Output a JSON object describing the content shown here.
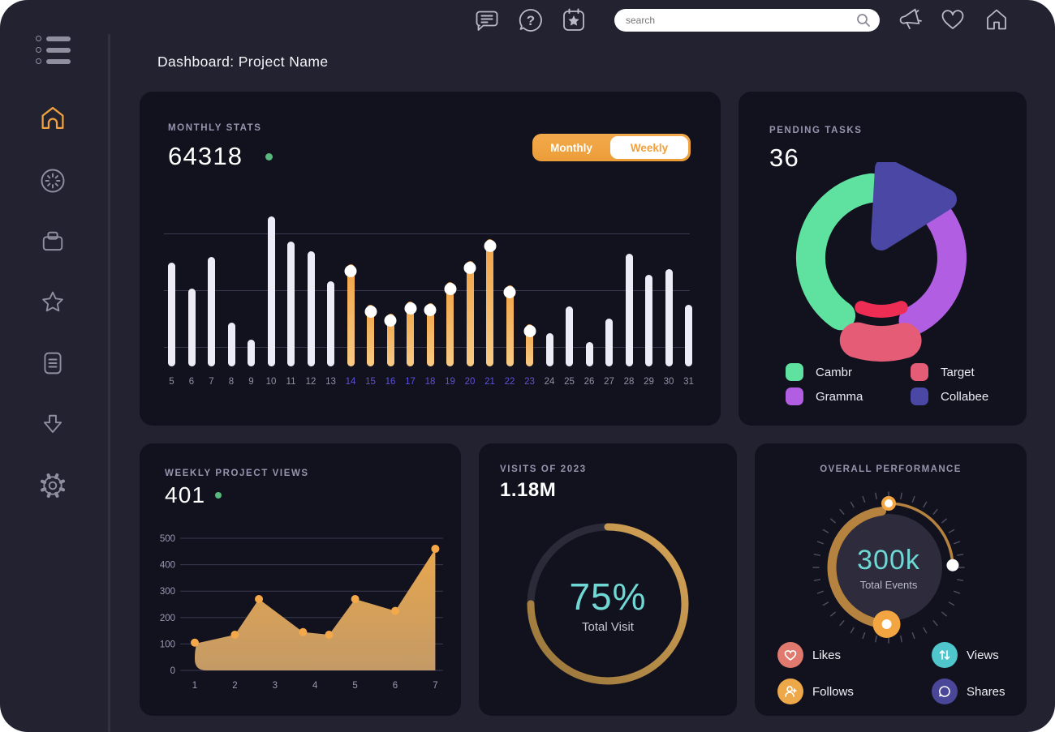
{
  "page": {
    "title": "Dashboard: Project Name"
  },
  "topbar": {
    "search_placeholder": "search",
    "icons": [
      "chat-icon",
      "help-icon",
      "calendar-icon",
      "search-icon",
      "megaphone-icon",
      "heart-icon",
      "home-icon"
    ]
  },
  "sidebar": {
    "icons": [
      "menu-icon",
      "home-icon",
      "timer-icon",
      "box-icon",
      "star-icon",
      "document-icon",
      "download-icon",
      "gear-icon"
    ],
    "active": "home",
    "active_color": "#f0a23f"
  },
  "cards": {
    "monthly": {
      "label": "MONTHLY STATS",
      "value": "64318",
      "toggle": {
        "left": "Monthly",
        "right": "Weekly",
        "selected": "Monthly"
      }
    },
    "pending": {
      "label": "PENDING TASKS",
      "value": "36",
      "legend": [
        {
          "name": "Cambr",
          "color": "#5fe2a0"
        },
        {
          "name": "Target",
          "color": "#e55c77"
        },
        {
          "name": "Gramma",
          "color": "#b25ee2"
        },
        {
          "name": "Collabee",
          "color": "#4b48a5"
        }
      ]
    },
    "weekly": {
      "label": "WEEKLY PROJECT VIEWS",
      "value": "401"
    },
    "visits": {
      "label": "VISITS OF 2023",
      "value": "1.18M",
      "percent": "75%",
      "caption": "Total Visit"
    },
    "performance": {
      "label": "OVERALL PERFORMANCE",
      "value": "300k",
      "caption": "Total Events",
      "legend": [
        {
          "name": "Likes",
          "color": "#e0796e",
          "icon": "heart-icon"
        },
        {
          "name": "Views",
          "color": "#4fc6cb",
          "icon": "arrows-icon"
        },
        {
          "name": "Follows",
          "color": "#eda84a",
          "icon": "person-add-icon"
        },
        {
          "name": "Shares",
          "color": "#4a4698",
          "icon": "chat-bubble-icon"
        }
      ]
    }
  },
  "chart_data": [
    {
      "type": "bar",
      "title": "Monthly Stats",
      "categories": [
        5,
        6,
        7,
        8,
        9,
        10,
        11,
        12,
        13,
        14,
        15,
        16,
        17,
        18,
        19,
        20,
        21,
        22,
        23,
        24,
        25,
        26,
        27,
        28,
        29,
        30,
        31
      ],
      "values": [
        69,
        52,
        73,
        29,
        18,
        100,
        83,
        77,
        57,
        68,
        41,
        35,
        43,
        42,
        56,
        70,
        85,
        54,
        28,
        22,
        40,
        16,
        32,
        75,
        61,
        65,
        41
      ],
      "highlight_from": 14,
      "highlight_to": 23,
      "bar_color": "#edecf6",
      "highlight_gradient": [
        "#f1a447",
        "#f8cb85"
      ],
      "label_color": "#8f90a6",
      "highlight_label_color": "#5b51d8",
      "ylim": [
        0,
        100
      ],
      "grid": true
    },
    {
      "type": "pie",
      "title": "Pending Tasks",
      "segments": [
        {
          "name": "Cambr",
          "color": "#5fe2a0",
          "from_deg": 215,
          "to_deg": 352,
          "pct": 40
        },
        {
          "name": "Gramma",
          "color": "#b25ee2",
          "from_deg": 55,
          "to_deg": 153,
          "pct": 27
        },
        {
          "name": "Target",
          "color": "#e55c77",
          "inner_color": "#ee2d55",
          "from_deg": 164,
          "to_deg": 197,
          "pct": 13,
          "exploded": true
        },
        {
          "name": "Collabee",
          "color": "#4b48a5",
          "pct": 20,
          "shape": "wedge"
        }
      ]
    },
    {
      "type": "area",
      "title": "Weekly Project Views",
      "x": [
        1,
        2,
        2.6,
        3.7,
        4.35,
        5,
        6,
        7
      ],
      "y": [
        105,
        135,
        270,
        145,
        135,
        270,
        225,
        460
      ],
      "xticks": [
        1,
        2,
        3,
        4,
        5,
        6,
        7
      ],
      "yticks": [
        0,
        100,
        200,
        300,
        400,
        500
      ],
      "ylim": [
        0,
        500
      ],
      "line_color": "#eda54c",
      "dot_color": "#f4a84a",
      "fill_top": "#e7a64d",
      "fill_bottom": "#c49a66",
      "grid": true
    },
    {
      "type": "pie",
      "title": "Visits of 2023",
      "percent": 75,
      "label": "75%",
      "caption": "Total Visit",
      "color_from": "#97743a",
      "color_to": "#d7a557",
      "track_color": "#2b2a39"
    },
    {
      "type": "gauge",
      "title": "Overall Performance",
      "value": "300k",
      "caption": "Total Events",
      "thick_arc_deg": [
        182,
        353
      ],
      "thin_arc_deg": [
        0,
        88
      ],
      "arc_color": "#b5823f",
      "knob_color": "#f2a540"
    }
  ]
}
